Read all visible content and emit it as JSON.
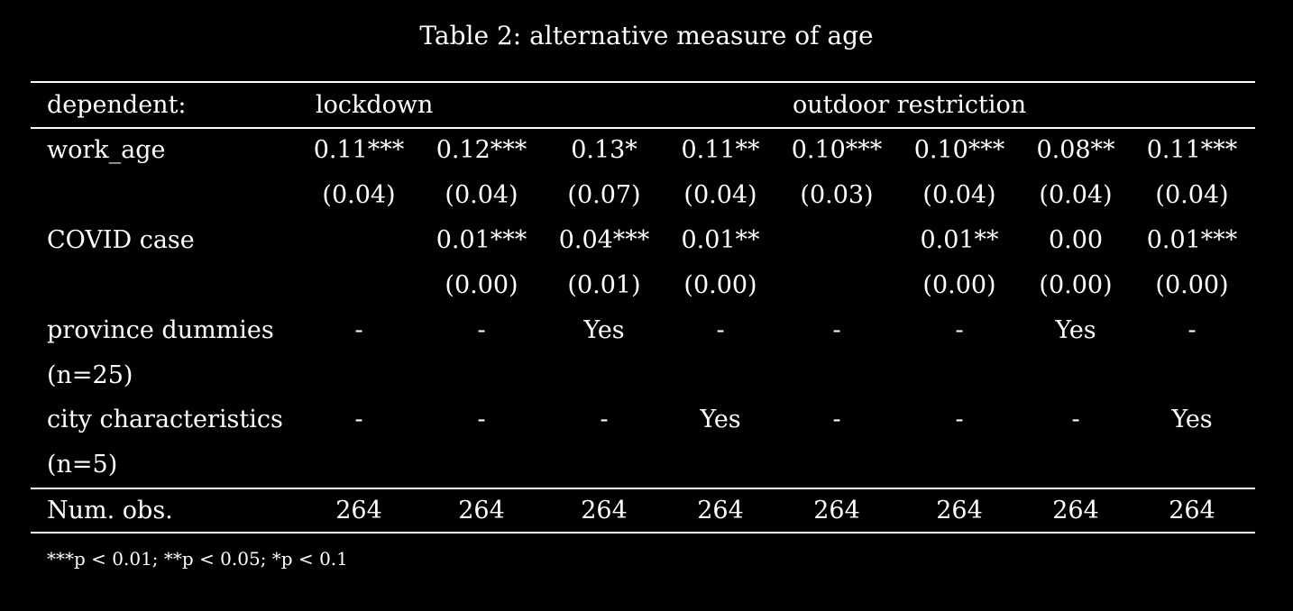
{
  "caption": "Table 2: alternative measure of age",
  "header": {
    "dependent_label": "dependent:",
    "group1": "lockdown",
    "group2": "outdoor restriction"
  },
  "rows": {
    "work_age": {
      "label": "work_age",
      "coef": [
        "0.11***",
        "0.12***",
        "0.13*",
        "0.11**",
        "0.10***",
        "0.10***",
        "0.08**",
        "0.11***"
      ],
      "se": [
        "(0.04)",
        "(0.04)",
        "(0.07)",
        "(0.04)",
        "(0.03)",
        "(0.04)",
        "(0.04)",
        "(0.04)"
      ]
    },
    "covid_case": {
      "label": "COVID case",
      "coef": [
        "",
        "0.01***",
        "0.04***",
        "0.01**",
        "",
        "0.01**",
        "0.00",
        "0.01***"
      ],
      "se": [
        "",
        "(0.00)",
        "(0.01)",
        "(0.00)",
        "",
        "(0.00)",
        "(0.00)",
        "(0.00)"
      ]
    },
    "province": {
      "label": "province dummies",
      "label2": "(n=25)",
      "values": [
        "-",
        "-",
        "Yes",
        "-",
        "-",
        "-",
        "Yes",
        "-"
      ]
    },
    "city": {
      "label": "city characteristics",
      "label2": "(n=5)",
      "values": [
        "-",
        "-",
        "-",
        "Yes",
        "-",
        "-",
        "-",
        "Yes"
      ]
    },
    "num_obs": {
      "label": "Num. obs.",
      "values": [
        "264",
        "264",
        "264",
        "264",
        "264",
        "264",
        "264",
        "264"
      ]
    }
  },
  "footnote": "***p < 0.01; **p < 0.05; *p < 0.1"
}
